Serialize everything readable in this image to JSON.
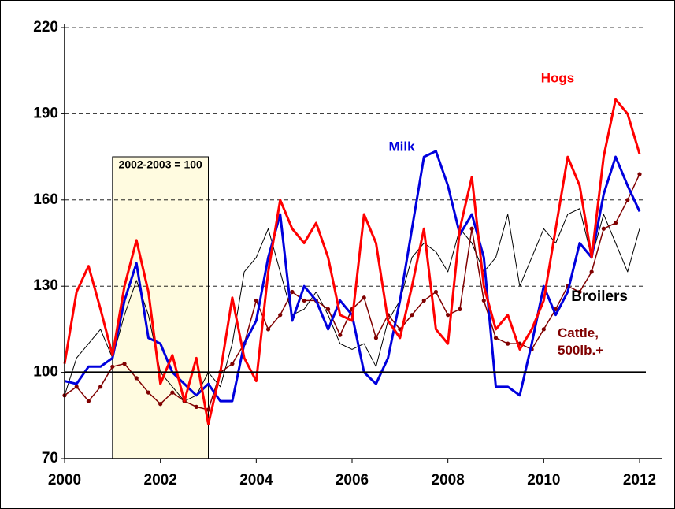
{
  "chart_data": {
    "type": "line",
    "x": [
      2000,
      2000.25,
      2000.5,
      2000.75,
      2001,
      2001.25,
      2001.5,
      2001.75,
      2002,
      2002.25,
      2002.5,
      2002.75,
      2003,
      2003.25,
      2003.5,
      2003.75,
      2004,
      2004.25,
      2004.5,
      2004.75,
      2005,
      2005.25,
      2005.5,
      2005.75,
      2006,
      2006.25,
      2006.5,
      2006.75,
      2007,
      2007.25,
      2007.5,
      2007.75,
      2008,
      2008.25,
      2008.5,
      2008.75,
      2009,
      2009.25,
      2009.5,
      2009.75,
      2010,
      2010.25,
      2010.5,
      2010.75,
      2011,
      2011.25,
      2011.5,
      2011.75,
      2012
    ],
    "series": [
      {
        "name": "Broilers",
        "color": "#000000",
        "width": 1,
        "values": [
          92,
          105,
          110,
          115,
          105,
          120,
          132,
          120,
          100,
          95,
          90,
          92,
          100,
          95,
          110,
          135,
          140,
          150,
          135,
          120,
          122,
          128,
          120,
          110,
          108,
          110,
          102,
          118,
          125,
          140,
          145,
          142,
          135,
          150,
          145,
          135,
          140,
          155,
          130,
          140,
          150,
          145,
          155,
          157,
          140,
          155,
          145,
          135,
          150
        ]
      },
      {
        "name": "Cattle, 500lb.+",
        "color": "#800000",
        "width": 1.5,
        "markers": true,
        "values": [
          92,
          95,
          90,
          95,
          102,
          103,
          98,
          93,
          89,
          93,
          90,
          88,
          87,
          100,
          103,
          110,
          125,
          115,
          120,
          128,
          125,
          125,
          122,
          113,
          122,
          126,
          112,
          120,
          115,
          120,
          125,
          128,
          120,
          122,
          150,
          125,
          112,
          110,
          110,
          108,
          115,
          122,
          130,
          128,
          135,
          150,
          152,
          160,
          169
        ]
      },
      {
        "name": "Milk",
        "color": "#0000dd",
        "width": 3,
        "values": [
          97,
          96,
          102,
          102,
          105,
          125,
          138,
          112,
          110,
          100,
          96,
          92,
          96,
          90,
          90,
          110,
          118,
          140,
          155,
          118,
          130,
          125,
          115,
          125,
          120,
          100,
          96,
          105,
          125,
          150,
          175,
          177,
          165,
          148,
          155,
          140,
          95,
          95,
          92,
          110,
          130,
          120,
          128,
          145,
          140,
          162,
          175,
          165,
          156
        ]
      },
      {
        "name": "Hogs",
        "color": "#ff0000",
        "width": 3,
        "values": [
          103,
          128,
          137,
          122,
          106,
          130,
          146,
          128,
          96,
          106,
          90,
          105,
          82,
          100,
          126,
          105,
          97,
          135,
          160,
          150,
          145,
          152,
          140,
          120,
          118,
          155,
          145,
          118,
          112,
          130,
          150,
          115,
          110,
          150,
          168,
          130,
          115,
          120,
          108,
          115,
          125,
          150,
          175,
          165,
          140,
          175,
          195,
          190,
          176
        ]
      }
    ],
    "xlim": [
      2000,
      2012
    ],
    "xticks": [
      2000,
      2002,
      2004,
      2006,
      2008,
      2010,
      2012
    ],
    "ylim": [
      70,
      220
    ],
    "yticks": [
      70,
      100,
      130,
      160,
      190,
      220
    ],
    "grid": true,
    "reference_line": 100,
    "shaded_region": {
      "x": [
        2001,
        2003
      ],
      "label": "2002-2003 = 100"
    }
  }
}
